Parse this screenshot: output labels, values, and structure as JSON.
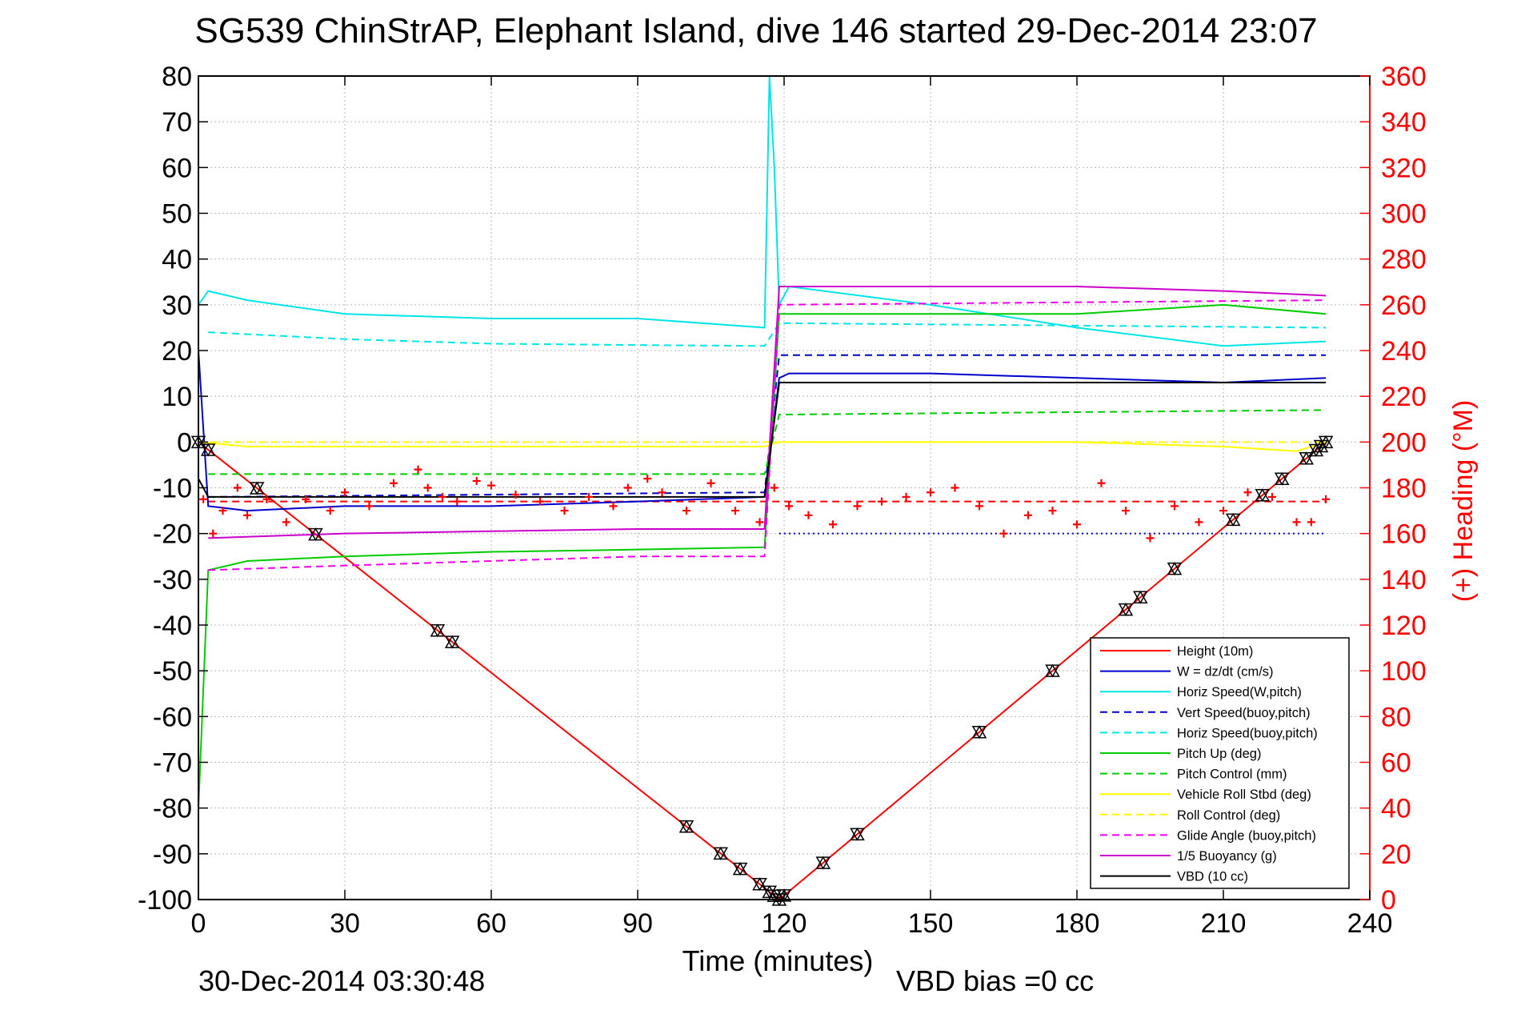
{
  "figure": {
    "title": "SG539 ChinStrAP, Elephant Island, dive 146 started 29-Dec-2014 23:07",
    "footer_left": "30-Dec-2014 03:30:48",
    "footer_right": "VBD bias =0 cc"
  },
  "chart_data": {
    "type": "line",
    "xlabel": "Time (minutes)",
    "ylabel": "",
    "y2label": "(+) Heading (°M)",
    "xlim": [
      0,
      240
    ],
    "ylim": [
      -100,
      80
    ],
    "y2lim": [
      0,
      360
    ],
    "xticks": [
      0,
      30,
      60,
      90,
      120,
      150,
      180,
      210,
      240
    ],
    "yticks": [
      -100,
      -90,
      -80,
      -70,
      -60,
      -50,
      -40,
      -30,
      -20,
      -10,
      0,
      10,
      20,
      30,
      40,
      50,
      60,
      70,
      80
    ],
    "y2ticks": [
      0,
      20,
      40,
      60,
      80,
      100,
      120,
      140,
      160,
      180,
      200,
      220,
      240,
      260,
      280,
      300,
      320,
      340,
      360
    ],
    "grid": true,
    "legend_position": "bottom-right",
    "colors": {
      "height": "#ff0000",
      "w": "#0000cc",
      "horiz": "#00e5e5",
      "pitch": "#00cc00",
      "roll": "#ffff00",
      "glide": "#ee00ee",
      "buoy": "#cc00cc",
      "vbd": "#000000",
      "heading": "#ff0000"
    },
    "series": [
      {
        "name": "Height (10m)",
        "style": "solid",
        "color": "#ff0000",
        "x": [
          0,
          119,
          231
        ],
        "y": [
          0,
          -100,
          0
        ]
      },
      {
        "name": "W = dz/dt (cm/s)",
        "style": "solid",
        "color": "#0000cc",
        "x": [
          0,
          2,
          10,
          30,
          60,
          90,
          116,
          119,
          121,
          150,
          180,
          210,
          231
        ],
        "y": [
          20,
          -14,
          -15,
          -14,
          -14,
          -13,
          -12,
          14,
          15,
          15,
          14,
          13,
          14
        ]
      },
      {
        "name": "Horiz Speed(W,pitch)",
        "style": "solid",
        "color": "#00e5e5",
        "x": [
          0,
          2,
          10,
          30,
          60,
          90,
          116,
          117,
          118,
          119,
          121,
          150,
          180,
          210,
          231
        ],
        "y": [
          30,
          33,
          31,
          28,
          27,
          27,
          25,
          80,
          60,
          30,
          34,
          30,
          25,
          21,
          22
        ]
      },
      {
        "name": "Vert Speed(buoy,pitch)",
        "style": "dashed",
        "color": "#0000cc",
        "x": [
          2,
          116,
          119,
          231
        ],
        "y": [
          -12,
          -11,
          19,
          19
        ]
      },
      {
        "name": "Horiz Speed(buoy,pitch)",
        "style": "dashed",
        "color": "#00e5e5",
        "x": [
          2,
          30,
          60,
          90,
          116,
          119,
          231
        ],
        "y": [
          24,
          22.5,
          21.5,
          21.2,
          21,
          26,
          25
        ]
      },
      {
        "name": "Pitch Up (deg)",
        "style": "solid",
        "color": "#00cc00",
        "x": [
          0,
          2,
          10,
          30,
          60,
          90,
          116,
          119,
          121,
          150,
          180,
          210,
          231
        ],
        "y": [
          -80,
          -28,
          -26,
          -25,
          -24,
          -23.5,
          -23,
          28,
          28,
          28,
          28,
          30,
          28
        ]
      },
      {
        "name": "Pitch Control (mm)",
        "style": "dashed",
        "color": "#00cc00",
        "x": [
          2,
          116,
          119,
          231
        ],
        "y": [
          -7,
          -7,
          6,
          7
        ]
      },
      {
        "name": "Vehicle Roll Stbd (deg)",
        "style": "solid",
        "color": "#ffff00",
        "x": [
          0,
          10,
          30,
          60,
          90,
          116,
          119,
          150,
          180,
          210,
          225,
          231
        ],
        "y": [
          0,
          -1,
          -1,
          -1,
          -1,
          -1,
          0,
          0,
          0,
          -1,
          -2,
          0
        ]
      },
      {
        "name": "Roll Control (deg)",
        "style": "dashed",
        "color": "#ffff00",
        "x": [
          0,
          231
        ],
        "y": [
          0,
          0
        ]
      },
      {
        "name": "Glide Angle (buoy,pitch)",
        "style": "dashed",
        "color": "#ee00ee",
        "x": [
          2,
          30,
          60,
          90,
          116,
          119,
          231
        ],
        "y": [
          -28,
          -27,
          -26,
          -25,
          -25,
          30,
          31
        ]
      },
      {
        "name": "1/5 Buoyancy (g)",
        "style": "solid",
        "color": "#cc00cc",
        "x": [
          2,
          30,
          60,
          90,
          116,
          119,
          150,
          180,
          210,
          231
        ],
        "y": [
          -21,
          -20,
          -19.5,
          -19,
          -19,
          34,
          34,
          34,
          33,
          32
        ]
      },
      {
        "name": "VBD (10 cc)",
        "style": "solid",
        "color": "#000000",
        "x": [
          0,
          2,
          116,
          119,
          231
        ],
        "y": [
          -8,
          -12,
          -12,
          13,
          13
        ]
      }
    ],
    "extra_lines": [
      {
        "label": "",
        "style": "dotted",
        "color": "#0000cc",
        "x": [
          119,
          231
        ],
        "y": [
          -20,
          -20
        ]
      },
      {
        "label": "",
        "style": "dashed",
        "color": "#ff0000",
        "x": [
          2,
          231
        ],
        "y": [
          -13,
          -13
        ]
      }
    ],
    "heading_points": {
      "axis": "right",
      "marker": "+",
      "color": "#ff0000",
      "x": [
        1,
        3,
        5,
        8,
        10,
        14,
        18,
        22,
        27,
        30,
        35,
        40,
        45,
        47,
        50,
        53,
        57,
        60,
        65,
        70,
        75,
        80,
        85,
        88,
        92,
        95,
        100,
        105,
        110,
        115,
        118,
        121,
        125,
        130,
        135,
        140,
        145,
        150,
        155,
        160,
        165,
        170,
        175,
        180,
        185,
        190,
        195,
        200,
        205,
        210,
        215,
        220,
        225,
        228,
        231
      ],
      "y": [
        175,
        160,
        170,
        180,
        168,
        175,
        165,
        175,
        170,
        178,
        172,
        182,
        188,
        180,
        176,
        174,
        183,
        181,
        177,
        174,
        170,
        176,
        172,
        180,
        184,
        178,
        170,
        182,
        170,
        165,
        180,
        172,
        168,
        164,
        172,
        174,
        176,
        178,
        180,
        172,
        160,
        168,
        170,
        164,
        182,
        170,
        158,
        172,
        165,
        170,
        178,
        176,
        165,
        165,
        175
      ]
    },
    "markers": {
      "symbol": "triangle-pair",
      "color": "#000000",
      "x": [
        0,
        2,
        12,
        24,
        49,
        52,
        100,
        107,
        111,
        115,
        117,
        118,
        119,
        120,
        128,
        135,
        160,
        175,
        190,
        193,
        200,
        212,
        218,
        222,
        227,
        229,
        230,
        231
      ]
    }
  }
}
